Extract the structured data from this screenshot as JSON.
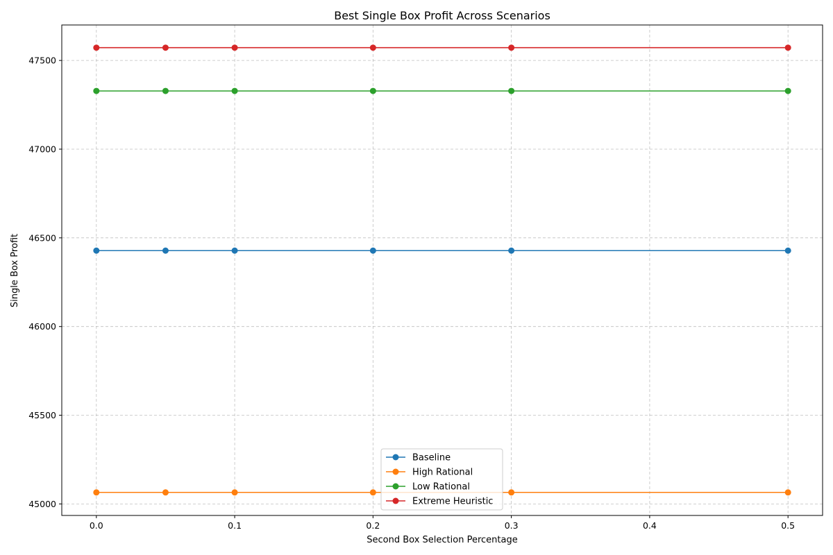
{
  "chart_data": {
    "type": "line",
    "title": "Best Single Box Profit Across Scenarios",
    "xlabel": "Second Box Selection Percentage",
    "ylabel": "Single Box Profit",
    "x": [
      0.0,
      0.05,
      0.1,
      0.2,
      0.3,
      0.5
    ],
    "xlim": [
      -0.025,
      0.525
    ],
    "ylim": [
      44935,
      47700
    ],
    "xticks": [
      0.0,
      0.1,
      0.2,
      0.3,
      0.4,
      0.5
    ],
    "xtick_labels": [
      "0.0",
      "0.1",
      "0.2",
      "0.3",
      "0.4",
      "0.5"
    ],
    "yticks": [
      45000,
      45500,
      46000,
      46500,
      47000,
      47500
    ],
    "ytick_labels": [
      "45000",
      "45500",
      "46000",
      "46500",
      "47000",
      "47500"
    ],
    "grid": true,
    "legend_position": "bottom-center",
    "series": [
      {
        "name": "Baseline",
        "color": "#1f77b4",
        "values": [
          46428,
          46428,
          46428,
          46428,
          46428,
          46428
        ]
      },
      {
        "name": "High Rational",
        "color": "#ff7f0e",
        "values": [
          45065,
          45065,
          45065,
          45065,
          45065,
          45065
        ]
      },
      {
        "name": "Low Rational",
        "color": "#2ca02c",
        "values": [
          47328,
          47328,
          47328,
          47328,
          47328,
          47328
        ]
      },
      {
        "name": "Extreme Heuristic",
        "color": "#d62728",
        "values": [
          47572,
          47572,
          47572,
          47572,
          47572,
          47572
        ]
      }
    ]
  }
}
